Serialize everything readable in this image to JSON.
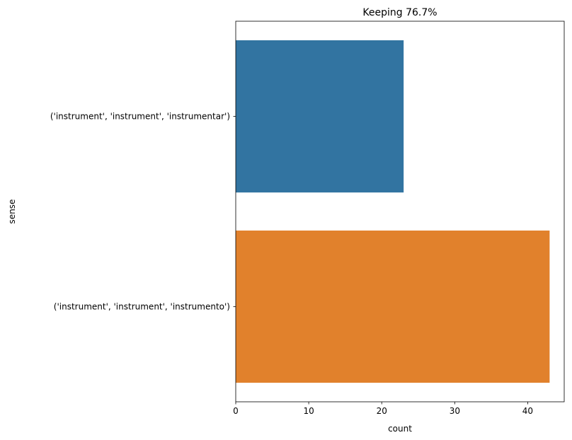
{
  "chart_data": {
    "type": "bar",
    "orientation": "horizontal",
    "title": "Keeping 76.7%",
    "xlabel": "count",
    "ylabel": "sense",
    "categories": [
      "('instrument', 'instrument', 'instrumentar')",
      "('instrument', 'instrument', 'instrumento')"
    ],
    "values": [
      23,
      43
    ],
    "colors": [
      "#3274a1",
      "#e1812c"
    ],
    "xlim": [
      0,
      45
    ],
    "xticks": [
      0,
      10,
      20,
      30,
      40
    ],
    "grid": false
  }
}
